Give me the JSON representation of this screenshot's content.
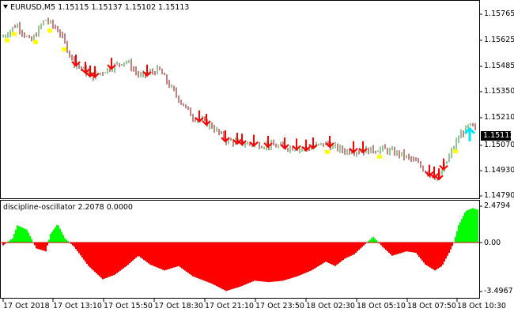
{
  "header": {
    "symbol_line": "EURUSD,M5  1.15115 1.15137 1.15102 1.15113",
    "indicator_line": "discipline-oscillator 2.2078 0.0000"
  },
  "price_axis": {
    "labels": [
      "1.15765",
      "1.15625",
      "1.15485",
      "1.15350",
      "1.15210",
      "1.15070",
      "1.14930",
      "1.14790"
    ],
    "current_price": "1.15113"
  },
  "osc_axis": {
    "labels": [
      "2.4794",
      "0.00",
      "-3.4967"
    ]
  },
  "time_axis": {
    "labels": [
      "17 Oct 2018",
      "17 Oct 13:10",
      "17 Oct 15:50",
      "17 Oct 18:30",
      "17 Oct 21:10",
      "17 Oct 23:50",
      "18 Oct 02:30",
      "18 Oct 05:10",
      "18 Oct 07:50",
      "18 Oct 10:30"
    ]
  },
  "colors": {
    "bull_candle": "#2e8b2e",
    "bear_candle": "#8b0000",
    "sell_arrow": "#ff0000",
    "buy_arrow": "#00e5ff",
    "marker": "#ffff00",
    "osc_positive": "#00ff00",
    "osc_negative": "#ff0000"
  },
  "chart_data": {
    "type": "line",
    "price_range": [
      1.1475,
      1.158
    ],
    "price_path": [
      [
        0,
        1.1563
      ],
      [
        0.03,
        1.157
      ],
      [
        0.06,
        1.156
      ],
      [
        0.09,
        1.1573
      ],
      [
        0.12,
        1.1566
      ],
      [
        0.15,
        1.1549
      ],
      [
        0.19,
        1.1541
      ],
      [
        0.22,
        1.1545
      ],
      [
        0.26,
        1.155
      ],
      [
        0.29,
        1.1541
      ],
      [
        0.33,
        1.1545
      ],
      [
        0.36,
        1.1533
      ],
      [
        0.4,
        1.1519
      ],
      [
        0.44,
        1.1514
      ],
      [
        0.47,
        1.1506
      ],
      [
        0.51,
        1.1504
      ],
      [
        0.56,
        1.1503
      ],
      [
        0.6,
        1.1502
      ],
      [
        0.64,
        1.1501
      ],
      [
        0.68,
        1.1504
      ],
      [
        0.72,
        1.15
      ],
      [
        0.76,
        1.15
      ],
      [
        0.8,
        1.1501
      ],
      [
        0.84,
        1.1498
      ],
      [
        0.87,
        1.1494
      ],
      [
        0.9,
        1.1487
      ],
      [
        0.92,
        1.1485
      ],
      [
        0.94,
        1.1496
      ],
      [
        0.965,
        1.1509
      ],
      [
        0.985,
        1.1514
      ],
      [
        1,
        1.1511
      ]
    ],
    "osc_range": [
      -3.4967,
      2.4794
    ],
    "osc_path": [
      [
        0,
        -0.2
      ],
      [
        0.02,
        0.3
      ],
      [
        0.03,
        1.2
      ],
      [
        0.05,
        0.9
      ],
      [
        0.07,
        -0.4
      ],
      [
        0.09,
        -0.6
      ],
      [
        0.1,
        0.6
      ],
      [
        0.115,
        1.3
      ],
      [
        0.13,
        0.3
      ],
      [
        0.15,
        -0.3
      ],
      [
        0.18,
        -1.6
      ],
      [
        0.21,
        -2.5
      ],
      [
        0.235,
        -2.2
      ],
      [
        0.26,
        -1.6
      ],
      [
        0.285,
        -0.9
      ],
      [
        0.31,
        -1.5
      ],
      [
        0.34,
        -1.9
      ],
      [
        0.37,
        -1.6
      ],
      [
        0.4,
        -2.3
      ],
      [
        0.44,
        -2.8
      ],
      [
        0.47,
        -3.3
      ],
      [
        0.5,
        -3.0
      ],
      [
        0.53,
        -2.6
      ],
      [
        0.56,
        -2.7
      ],
      [
        0.59,
        -2.6
      ],
      [
        0.62,
        -2.3
      ],
      [
        0.65,
        -1.9
      ],
      [
        0.68,
        -1.3
      ],
      [
        0.7,
        -1.6
      ],
      [
        0.72,
        -1.1
      ],
      [
        0.74,
        -0.8
      ],
      [
        0.76,
        -0.2
      ],
      [
        0.78,
        0.4
      ],
      [
        0.8,
        -0.3
      ],
      [
        0.82,
        -0.9
      ],
      [
        0.85,
        -0.6
      ],
      [
        0.87,
        -0.7
      ],
      [
        0.89,
        -1.5
      ],
      [
        0.91,
        -1.9
      ],
      [
        0.925,
        -1.6
      ],
      [
        0.94,
        -0.7
      ],
      [
        0.95,
        0.0
      ],
      [
        0.96,
        1.2
      ],
      [
        0.975,
        2.2
      ],
      [
        0.99,
        2.4
      ],
      [
        1,
        2.3
      ]
    ],
    "sell_arrows": [
      0.155,
      0.175,
      0.185,
      0.195,
      0.23,
      0.305,
      0.415,
      0.43,
      0.47,
      0.495,
      0.505,
      0.53,
      0.56,
      0.595,
      0.62,
      0.64,
      0.655,
      0.69,
      0.74,
      0.76,
      0.9,
      0.91,
      0.92,
      0.93
    ],
    "buy_arrows": [
      0.985
    ],
    "markers": [
      0.01,
      0.025,
      0.07,
      0.1,
      0.13,
      0.685,
      0.795,
      0.955
    ]
  }
}
